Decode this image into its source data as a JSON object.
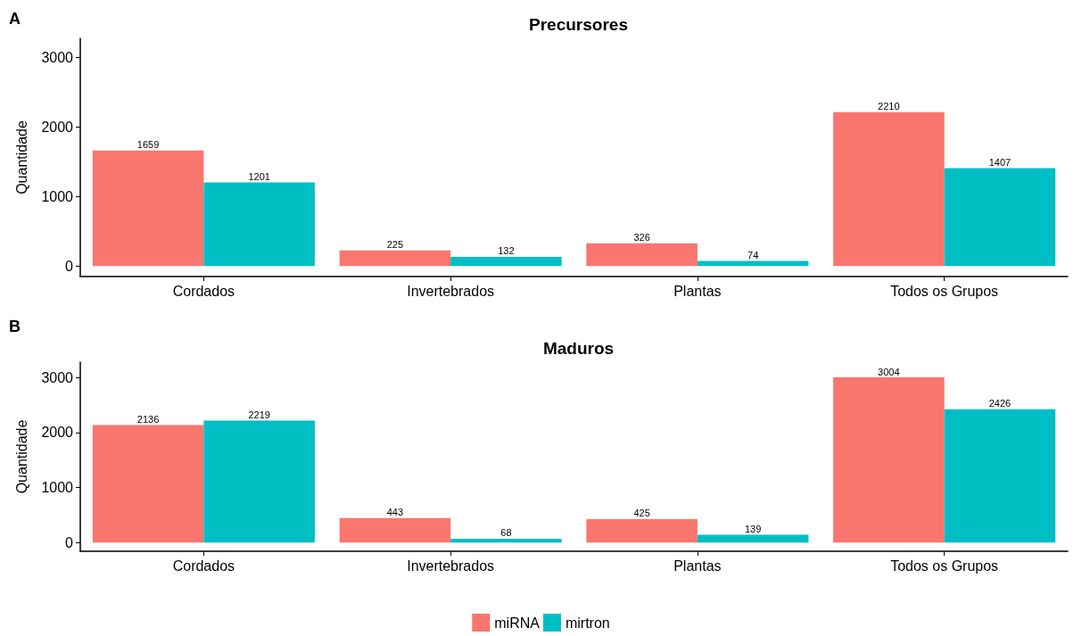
{
  "chart_data": [
    {
      "type": "bar",
      "title": "Precursores",
      "ylabel": "Quantidade",
      "annotations": [
        "A"
      ],
      "categories": [
        "Cordados",
        "Invertebrados",
        "Plantas",
        "Todos os Grupos"
      ],
      "series": [
        {
          "color": "#f8766d",
          "values": [
            1659,
            225,
            326,
            2210
          ]
        },
        {
          "color": "#00bfc4",
          "values": [
            1201,
            132,
            74,
            1407
          ]
        }
      ],
      "ylim": [
        -150,
        3270
      ],
      "yticks": [
        0,
        1000,
        2000,
        3000
      ],
      "grid": false,
      "legend": false,
      "data_labels": true
    },
    {
      "type": "bar",
      "title": "Maduros",
      "ylabel": "Quantidade",
      "annotations": [
        "B"
      ],
      "categories": [
        "Cordados",
        "Invertebrados",
        "Plantas",
        "Todos os Grupos"
      ],
      "series": [
        {
          "name": "miRNA",
          "color": "#f8766d",
          "values": [
            2136,
            443,
            425,
            3004
          ]
        },
        {
          "name": "mirtron",
          "color": "#00bfc4",
          "values": [
            2219,
            68,
            139,
            2426
          ]
        }
      ],
      "ylim": [
        -160,
        3280
      ],
      "yticks": [
        0,
        1000,
        2000,
        3000
      ],
      "grid": false,
      "legend": "bottom",
      "data_labels": true
    }
  ]
}
